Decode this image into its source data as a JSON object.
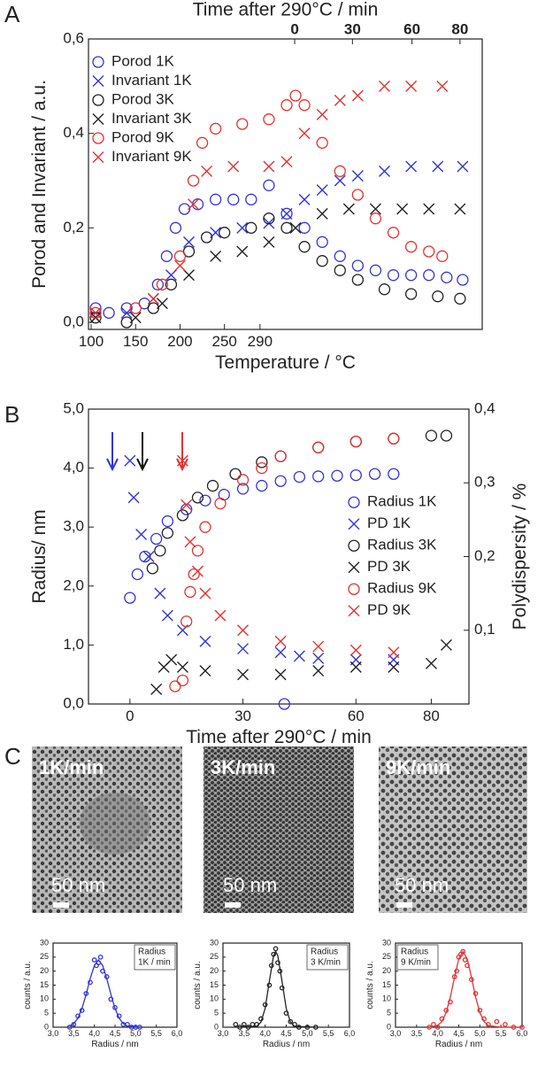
{
  "panel_labels": [
    "A",
    "B",
    "C"
  ],
  "micrographs": [
    {
      "label": "1K/min",
      "scale": "50 nm"
    },
    {
      "label": "3K/min",
      "scale": "50 nm"
    },
    {
      "label": "9K/min",
      "scale": "50 nm"
    }
  ],
  "chart_data": [
    {
      "type": "scatter",
      "x2label": "Time after 290°C / min",
      "xlabel": "Temperature / °C",
      "ylabel": "Porod and Invariant / a.u.",
      "legend": "upper left",
      "xlim": [
        97,
        540
      ],
      "ylim": [
        -0.015,
        0.6
      ],
      "xticks": [
        100,
        150,
        200,
        250,
        290
      ],
      "x2ticks": [
        {
          "value": 329,
          "label": "0"
        },
        {
          "value": 394,
          "label": "30"
        },
        {
          "value": 461,
          "label": "60"
        },
        {
          "value": 515,
          "label": "80"
        }
      ],
      "yticks": [
        {
          "value": 0,
          "label": "0,0"
        },
        {
          "value": 0.2,
          "label": "0,2"
        },
        {
          "value": 0.4,
          "label": "0,4"
        },
        {
          "value": 0.6,
          "label": "0,6"
        }
      ],
      "series": [
        {
          "name": "Porod 1K",
          "color": "#3333dd",
          "marker": "circle",
          "x": [
            105,
            120,
            140,
            160,
            175,
            185,
            195,
            205,
            220,
            240,
            260,
            280,
            300,
            320,
            340,
            360,
            380,
            400,
            420,
            440,
            460,
            480,
            500,
            518
          ],
          "values": [
            0.03,
            0.02,
            0.03,
            0.04,
            0.08,
            0.14,
            0.2,
            0.24,
            0.25,
            0.26,
            0.26,
            0.26,
            0.29,
            0.23,
            0.2,
            0.17,
            0.14,
            0.12,
            0.11,
            0.1,
            0.1,
            0.1,
            0.095,
            0.09
          ]
        },
        {
          "name": "Invariant 1K",
          "color": "#3333dd",
          "marker": "x",
          "x": [
            105,
            140,
            170,
            190,
            210,
            240,
            270,
            300,
            320,
            340,
            360,
            380,
            400,
            430,
            460,
            490,
            518
          ],
          "values": [
            0.01,
            0.02,
            0.05,
            0.1,
            0.17,
            0.19,
            0.2,
            0.21,
            0.23,
            0.26,
            0.28,
            0.3,
            0.31,
            0.32,
            0.33,
            0.33,
            0.33
          ]
        },
        {
          "name": "Porod 3K",
          "color": "#222222",
          "marker": "circle",
          "x": [
            105,
            140,
            170,
            190,
            210,
            230,
            250,
            280,
            300,
            320,
            340,
            360,
            380,
            400,
            430,
            460,
            490,
            515
          ],
          "values": [
            0.01,
            0.0,
            0.03,
            0.08,
            0.15,
            0.18,
            0.19,
            0.2,
            0.22,
            0.2,
            0.16,
            0.13,
            0.11,
            0.09,
            0.07,
            0.06,
            0.055,
            0.05
          ]
        },
        {
          "name": "Invariant 3K",
          "color": "#222222",
          "marker": "x",
          "x": [
            105,
            150,
            180,
            210,
            240,
            270,
            300,
            330,
            360,
            390,
            420,
            450,
            480,
            515
          ],
          "values": [
            0.01,
            0.01,
            0.04,
            0.1,
            0.14,
            0.15,
            0.17,
            0.2,
            0.23,
            0.24,
            0.24,
            0.24,
            0.24,
            0.24
          ]
        },
        {
          "name": "Porod  9K",
          "color": "#e83030",
          "marker": "circle",
          "x": [
            105,
            150,
            180,
            200,
            215,
            225,
            240,
            270,
            300,
            320,
            330,
            340,
            360,
            380,
            400,
            420,
            440,
            460,
            480,
            495
          ],
          "values": [
            0.02,
            0.03,
            0.08,
            0.14,
            0.3,
            0.38,
            0.41,
            0.42,
            0.43,
            0.46,
            0.48,
            0.46,
            0.38,
            0.32,
            0.27,
            0.22,
            0.19,
            0.16,
            0.15,
            0.14
          ]
        },
        {
          "name": "Invariant 9K",
          "color": "#e83030",
          "marker": "x",
          "x": [
            105,
            170,
            200,
            215,
            230,
            260,
            300,
            320,
            340,
            360,
            380,
            400,
            430,
            460,
            495
          ],
          "values": [
            0.02,
            0.05,
            0.12,
            0.25,
            0.32,
            0.33,
            0.33,
            0.34,
            0.4,
            0.44,
            0.47,
            0.48,
            0.5,
            0.5,
            0.5
          ]
        }
      ]
    },
    {
      "type": "scatter",
      "xlabel": "Time after 290°C / min",
      "ylabel": "Radius/ nm",
      "y2label": "Polydispersity / %",
      "legend": "center right",
      "xlim": [
        -11,
        90
      ],
      "ylim": [
        0,
        5
      ],
      "y2lim": [
        0,
        0.4
      ],
      "xticks": [
        0,
        30,
        60,
        80
      ],
      "yticks": [
        {
          "value": 0,
          "label": "0,0"
        },
        {
          "value": 1,
          "label": "1,0"
        },
        {
          "value": 2,
          "label": "2,0"
        },
        {
          "value": 3,
          "label": "3,0"
        },
        {
          "value": 4,
          "label": "4,0"
        },
        {
          "value": 5,
          "label": "5,0"
        }
      ],
      "y2ticks": [
        {
          "value": 0.1,
          "label": "0,1"
        },
        {
          "value": 0.2,
          "label": "0,2"
        },
        {
          "value": 0.3,
          "label": "0,3"
        },
        {
          "value": 0.4,
          "label": "0,4"
        }
      ],
      "series": [
        {
          "name": "Radius 1K",
          "color": "#3333dd",
          "marker": "circle",
          "x": [
            0,
            2,
            4,
            7,
            10,
            15,
            20,
            25,
            30,
            35,
            40,
            41,
            45,
            50,
            55,
            60,
            65,
            70
          ],
          "values": [
            1.8,
            2.2,
            2.5,
            2.8,
            3.1,
            3.3,
            3.45,
            3.55,
            3.65,
            3.7,
            3.78,
            0.0,
            3.85,
            3.86,
            3.87,
            3.88,
            3.9,
            3.9
          ]
        },
        {
          "name": "PD 1K",
          "color": "#3333dd",
          "marker": "x",
          "axis": "y2",
          "x": [
            0,
            1,
            3,
            5,
            8,
            10,
            14,
            20,
            30,
            40,
            45,
            50,
            60,
            70
          ],
          "values": [
            0.33,
            0.28,
            0.23,
            0.2,
            0.15,
            0.12,
            0.1,
            0.085,
            0.075,
            0.07,
            0.065,
            0.062,
            0.06,
            0.06
          ]
        },
        {
          "name": "Radius 3K",
          "color": "#222222",
          "marker": "circle",
          "x": [
            6,
            8,
            10,
            14,
            18,
            22,
            28,
            35,
            40,
            50,
            60,
            70,
            80,
            84
          ],
          "values": [
            2.3,
            2.6,
            2.9,
            3.2,
            3.5,
            3.7,
            3.9,
            4.1,
            4.2,
            4.35,
            4.45,
            4.5,
            4.55,
            4.55
          ]
        },
        {
          "name": "PD 3K",
          "color": "#222222",
          "marker": "x",
          "axis": "y2",
          "x": [
            7,
            9,
            11,
            14,
            20,
            30,
            40,
            50,
            60,
            70,
            80,
            84
          ],
          "values": [
            0.02,
            0.05,
            0.06,
            0.05,
            0.045,
            0.04,
            0.04,
            0.045,
            0.05,
            0.05,
            0.055,
            0.08
          ]
        },
        {
          "name": "Radius 9K",
          "color": "#e83030",
          "marker": "circle",
          "x": [
            12,
            14,
            15,
            16,
            17,
            18,
            20,
            24,
            30,
            35,
            40,
            50,
            60,
            70
          ],
          "values": [
            0.3,
            0.4,
            1.4,
            1.9,
            2.2,
            2.6,
            3.0,
            3.4,
            3.8,
            4.0,
            4.2,
            4.35,
            4.45,
            4.5
          ]
        },
        {
          "name": "PD 9K",
          "color": "#e83030",
          "marker": "x",
          "axis": "y2",
          "x": [
            14,
            15,
            16,
            18,
            20,
            24,
            30,
            40,
            50,
            60,
            70
          ],
          "values": [
            0.33,
            0.27,
            0.22,
            0.18,
            0.15,
            0.12,
            0.1,
            0.085,
            0.078,
            0.073,
            0.07
          ]
        }
      ]
    },
    {
      "type": "scatter",
      "xlabel": "Radius / nm",
      "ylabel": "counts / a.u.",
      "annotation": [
        "Radius",
        "1K / min"
      ],
      "xlim": [
        3,
        6
      ],
      "ylim": [
        0,
        30
      ],
      "xticks": [
        {
          "value": 3,
          "label": "3,0"
        },
        {
          "value": 3.5,
          "label": "3,5"
        },
        {
          "value": 4,
          "label": "4,0"
        },
        {
          "value": 4.5,
          "label": "4,5"
        },
        {
          "value": 5,
          "label": "5,0"
        },
        {
          "value": 5.5,
          "label": "5,5"
        },
        {
          "value": 6,
          "label": "6,0"
        }
      ],
      "yticks": [
        0,
        5,
        10,
        15,
        20,
        25,
        30
      ],
      "series": [
        {
          "color": "#3333dd",
          "marker": "circle",
          "x": [
            3.4,
            3.5,
            3.6,
            3.7,
            3.8,
            3.9,
            4.0,
            4.05,
            4.1,
            4.15,
            4.2,
            4.3,
            4.4,
            4.5,
            4.6,
            4.7,
            4.8,
            4.9,
            5.0,
            5.1
          ],
          "values": [
            0,
            1,
            4,
            6,
            12,
            16,
            24,
            22,
            23,
            25,
            20,
            18,
            10,
            7,
            4,
            1,
            1,
            0,
            0,
            0
          ]
        },
        {
          "color": "#3333dd",
          "marker": "line",
          "x": [
            3.4,
            3.5,
            3.6,
            3.7,
            3.8,
            3.9,
            4.0,
            4.1,
            4.2,
            4.3,
            4.4,
            4.5,
            4.6,
            4.7,
            4.8,
            5.1
          ],
          "values": [
            0.4,
            1.3,
            3.2,
            6.7,
            11.7,
            17.4,
            22,
            24,
            22,
            17.4,
            11.7,
            6.7,
            3.2,
            1.3,
            0.4,
            0
          ]
        }
      ]
    },
    {
      "type": "scatter",
      "xlabel": "Radius / nm",
      "ylabel": "counts / a.u.",
      "annotation": [
        "Radius",
        "3 K/min"
      ],
      "xlim": [
        3,
        6
      ],
      "ylim": [
        0,
        30
      ],
      "xticks": [
        {
          "value": 3,
          "label": "3,0"
        },
        {
          "value": 3.5,
          "label": "3,5"
        },
        {
          "value": 4,
          "label": "4,0"
        },
        {
          "value": 4.5,
          "label": "4,5"
        },
        {
          "value": 5,
          "label": "5,0"
        },
        {
          "value": 5.5,
          "label": "5,5"
        },
        {
          "value": 6,
          "label": "6,0"
        }
      ],
      "yticks": [
        0,
        5,
        10,
        15,
        20,
        25,
        30
      ],
      "series": [
        {
          "color": "#222222",
          "marker": "circle",
          "x": [
            3.3,
            3.4,
            3.5,
            3.6,
            3.7,
            3.8,
            3.9,
            4.0,
            4.1,
            4.15,
            4.2,
            4.25,
            4.3,
            4.35,
            4.4,
            4.5,
            4.6,
            4.7,
            4.8,
            5.0,
            5.2
          ],
          "values": [
            1,
            0,
            1,
            0,
            1,
            1,
            3,
            8,
            15,
            22,
            26,
            28,
            23,
            20,
            14,
            5,
            2,
            1,
            0,
            0,
            0
          ]
        },
        {
          "color": "#222222",
          "marker": "line",
          "x": [
            3.3,
            3.8,
            3.9,
            4.0,
            4.1,
            4.2,
            4.25,
            4.3,
            4.4,
            4.5,
            4.6,
            4.7,
            5.2
          ],
          "values": [
            0,
            0.3,
            1.8,
            6.7,
            16.4,
            25.5,
            27,
            25.5,
            16.4,
            6.7,
            1.8,
            0.3,
            0
          ]
        }
      ]
    },
    {
      "type": "scatter",
      "xlabel": "Radius / nm",
      "ylabel": "counts / a.u.",
      "annotation": [
        "Radius",
        "9 K/min"
      ],
      "xlim": [
        3,
        6
      ],
      "ylim": [
        0,
        30
      ],
      "xticks": [
        {
          "value": 3,
          "label": "3,0"
        },
        {
          "value": 3.5,
          "label": "3,5"
        },
        {
          "value": 4,
          "label": "4,0"
        },
        {
          "value": 4.5,
          "label": "4,5"
        },
        {
          "value": 5,
          "label": "5,0"
        },
        {
          "value": 5.5,
          "label": "5,5"
        },
        {
          "value": 6,
          "label": "6,0"
        }
      ],
      "yticks": [
        0,
        5,
        10,
        15,
        20,
        25,
        30
      ],
      "series": [
        {
          "color": "#e83030",
          "marker": "circle",
          "x": [
            3.8,
            3.9,
            4.0,
            4.1,
            4.2,
            4.3,
            4.4,
            4.45,
            4.5,
            4.55,
            4.6,
            4.65,
            4.7,
            4.8,
            4.9,
            5.0,
            5.1,
            5.2,
            5.4,
            5.6,
            5.8,
            6.0
          ],
          "values": [
            0,
            1,
            0,
            3,
            6,
            9,
            18,
            20,
            25,
            26,
            27,
            24,
            22,
            17,
            12,
            6,
            3,
            1,
            2,
            1,
            0,
            0
          ]
        },
        {
          "color": "#e83030",
          "marker": "line",
          "x": [
            3.8,
            4.0,
            4.1,
            4.2,
            4.3,
            4.4,
            4.5,
            4.6,
            4.7,
            4.8,
            4.9,
            5.0,
            5.1,
            5.2,
            5.5,
            6.0
          ],
          "values": [
            0,
            0.6,
            2,
            5.2,
            10.7,
            17.9,
            24.4,
            27,
            24.4,
            17.9,
            10.7,
            5.2,
            2,
            0.6,
            0,
            0
          ]
        }
      ]
    }
  ]
}
